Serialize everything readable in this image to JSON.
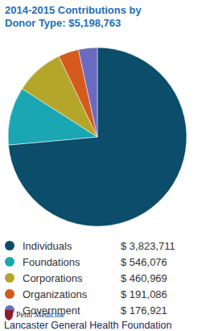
{
  "chart_data": {
    "type": "pie",
    "title": "2014-2015 Contributions by Donor Type: $5,198,763",
    "categories": [
      "Individuals",
      "Foundations",
      "Corporations",
      "Organizations",
      "Government"
    ],
    "values": [
      3823711,
      546076,
      460969,
      191086,
      176921
    ],
    "value_labels": [
      "$ 3,823,711",
      "$ 546,076",
      "$ 460,969",
      "$ 191,086",
      "$ 176,921"
    ],
    "colors": [
      "#0b4d6b",
      "#1aa7b3",
      "#b3a62b",
      "#d45a1e",
      "#6a6bc0"
    ],
    "legend": "bottom",
    "annotations": [
      "Penn Medicine",
      "Lancaster General Health Foundation"
    ]
  }
}
